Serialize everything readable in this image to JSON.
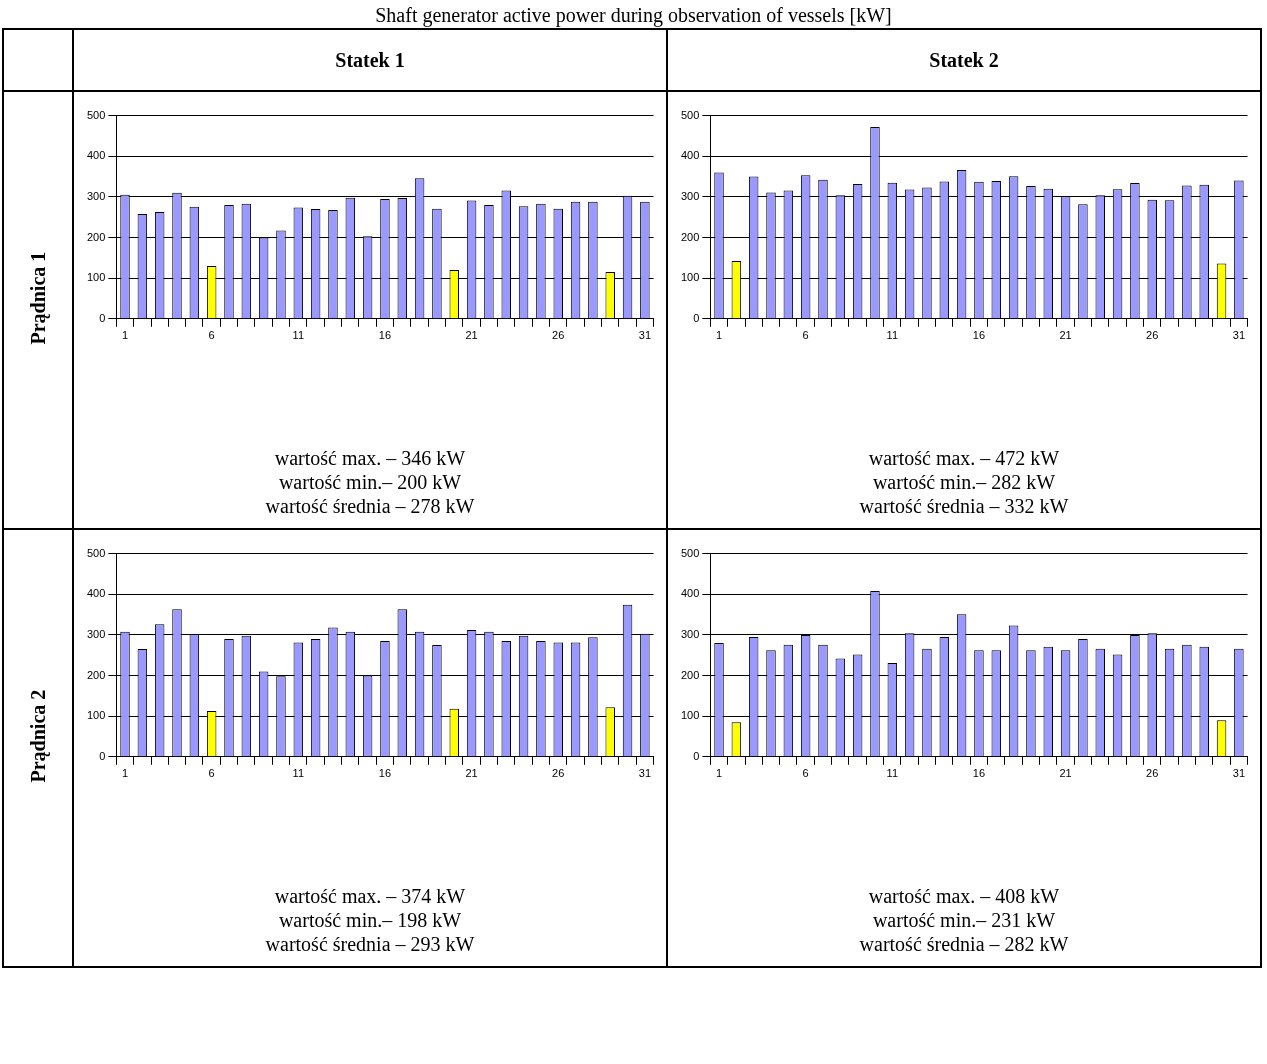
{
  "chart_data": [
    {
      "type": "other",
      "title": "Shaft generator active power during observation of vessels [kW]",
      "annotations": [
        "Statek 1",
        "Statek 2",
        "Prądnica 1",
        "Prądnica 2"
      ]
    },
    {
      "type": "bar",
      "categories": [
        "1",
        null,
        null,
        null,
        null,
        "6",
        null,
        null,
        null,
        null,
        "11",
        null,
        null,
        null,
        null,
        "16",
        null,
        null,
        null,
        null,
        "21",
        null,
        null,
        null,
        null,
        "26",
        null,
        null,
        null,
        null,
        "31"
      ],
      "values": [
        305,
        258,
        263,
        310,
        276,
        130,
        280,
        283,
        200,
        217,
        274,
        270,
        268,
        298,
        203,
        295,
        297,
        346,
        271,
        120,
        291,
        280,
        316,
        277,
        283,
        271,
        288,
        288,
        115,
        303,
        288
      ],
      "colors": [
        "#9999ff",
        "#9999ff",
        "#9999ff",
        "#9999ff",
        "#9999ff",
        "#ffff00",
        "#9999ff",
        "#9999ff",
        "#9999ff",
        "#9999ff",
        "#9999ff",
        "#9999ff",
        "#9999ff",
        "#9999ff",
        "#9999ff",
        "#9999ff",
        "#9999ff",
        "#9999ff",
        "#9999ff",
        "#ffff00",
        "#9999ff",
        "#9999ff",
        "#9999ff",
        "#9999ff",
        "#9999ff",
        "#9999ff",
        "#9999ff",
        "#9999ff",
        "#ffff00",
        "#9999ff",
        "#9999ff"
      ],
      "ylim": [
        0,
        500
      ],
      "yticks": [
        0,
        100,
        200,
        300,
        400,
        500
      ],
      "grid": "y",
      "annotations": [
        "wartość max. – 346 kW",
        "wartość min.– 200 kW",
        "wartość średnia – 278 kW"
      ]
    },
    {
      "type": "bar",
      "categories": [
        "1",
        null,
        null,
        null,
        null,
        "6",
        null,
        null,
        null,
        null,
        "11",
        null,
        null,
        null,
        null,
        "16",
        null,
        null,
        null,
        null,
        "21",
        null,
        null,
        null,
        null,
        "26",
        null,
        null,
        null,
        null,
        "31"
      ],
      "values": [
        360,
        142,
        350,
        311,
        316,
        353,
        342,
        304,
        332,
        472,
        335,
        318,
        323,
        338,
        366,
        337,
        339,
        351,
        327,
        320,
        302,
        282,
        304,
        319,
        334,
        293,
        292,
        328,
        330,
        136,
        340
      ],
      "colors": [
        "#9999ff",
        "#ffff00",
        "#9999ff",
        "#9999ff",
        "#9999ff",
        "#9999ff",
        "#9999ff",
        "#9999ff",
        "#9999ff",
        "#9999ff",
        "#9999ff",
        "#9999ff",
        "#9999ff",
        "#9999ff",
        "#9999ff",
        "#9999ff",
        "#9999ff",
        "#9999ff",
        "#9999ff",
        "#9999ff",
        "#9999ff",
        "#9999ff",
        "#9999ff",
        "#9999ff",
        "#9999ff",
        "#9999ff",
        "#9999ff",
        "#9999ff",
        "#9999ff",
        "#ffff00",
        "#9999ff"
      ],
      "ylim": [
        0,
        500
      ],
      "yticks": [
        0,
        100,
        200,
        300,
        400,
        500
      ],
      "grid": "y",
      "annotations": [
        "wartość max. – 472 kW",
        "wartość min.– 282 kW",
        "wartość średnia – 332 kW"
      ]
    },
    {
      "type": "bar",
      "categories": [
        "1",
        null,
        null,
        null,
        null,
        "6",
        null,
        null,
        null,
        null,
        "11",
        null,
        null,
        null,
        null,
        "16",
        null,
        null,
        null,
        null,
        "21",
        null,
        null,
        null,
        null,
        "26",
        null,
        null,
        null,
        null,
        "31"
      ],
      "values": [
        308,
        265,
        326,
        363,
        302,
        113,
        290,
        298,
        210,
        198,
        281,
        290,
        318,
        308,
        200,
        285,
        363,
        308,
        275,
        118,
        312,
        308,
        285,
        298,
        285,
        281,
        281,
        294,
        122,
        374,
        303
      ],
      "colors": [
        "#9999ff",
        "#9999ff",
        "#9999ff",
        "#9999ff",
        "#9999ff",
        "#ffff00",
        "#9999ff",
        "#9999ff",
        "#9999ff",
        "#9999ff",
        "#9999ff",
        "#9999ff",
        "#9999ff",
        "#9999ff",
        "#9999ff",
        "#9999ff",
        "#9999ff",
        "#9999ff",
        "#9999ff",
        "#ffff00",
        "#9999ff",
        "#9999ff",
        "#9999ff",
        "#9999ff",
        "#9999ff",
        "#9999ff",
        "#9999ff",
        "#9999ff",
        "#ffff00",
        "#9999ff",
        "#9999ff"
      ],
      "ylim": [
        0,
        500
      ],
      "yticks": [
        0,
        100,
        200,
        300,
        400,
        500
      ],
      "grid": "y",
      "annotations": [
        "wartość max. – 374 kW",
        "wartość min.– 198 kW",
        "wartość średnia – 293 kW"
      ]
    },
    {
      "type": "bar",
      "categories": [
        "1",
        null,
        null,
        null,
        null,
        "6",
        null,
        null,
        null,
        null,
        "11",
        null,
        null,
        null,
        null,
        "16",
        null,
        null,
        null,
        null,
        "21",
        null,
        null,
        null,
        null,
        "26",
        null,
        null,
        null,
        null,
        "31"
      ],
      "values": [
        280,
        85,
        295,
        262,
        276,
        300,
        276,
        242,
        252,
        408,
        231,
        304,
        266,
        295,
        351,
        262,
        262,
        323,
        262,
        271,
        262,
        290,
        266,
        252,
        300,
        304,
        266,
        276,
        271,
        90,
        266
      ],
      "colors": [
        "#9999ff",
        "#ffff00",
        "#9999ff",
        "#9999ff",
        "#9999ff",
        "#9999ff",
        "#9999ff",
        "#9999ff",
        "#9999ff",
        "#9999ff",
        "#9999ff",
        "#9999ff",
        "#9999ff",
        "#9999ff",
        "#9999ff",
        "#9999ff",
        "#9999ff",
        "#9999ff",
        "#9999ff",
        "#9999ff",
        "#9999ff",
        "#9999ff",
        "#9999ff",
        "#9999ff",
        "#9999ff",
        "#9999ff",
        "#9999ff",
        "#9999ff",
        "#9999ff",
        "#ffff00",
        "#9999ff"
      ],
      "ylim": [
        0,
        500
      ],
      "yticks": [
        0,
        100,
        200,
        300,
        400,
        500
      ],
      "grid": "y",
      "annotations": [
        "wartość max. – 408 kW",
        "wartość min.– 231 kW",
        "wartość średnia – 282 kW"
      ]
    }
  ]
}
